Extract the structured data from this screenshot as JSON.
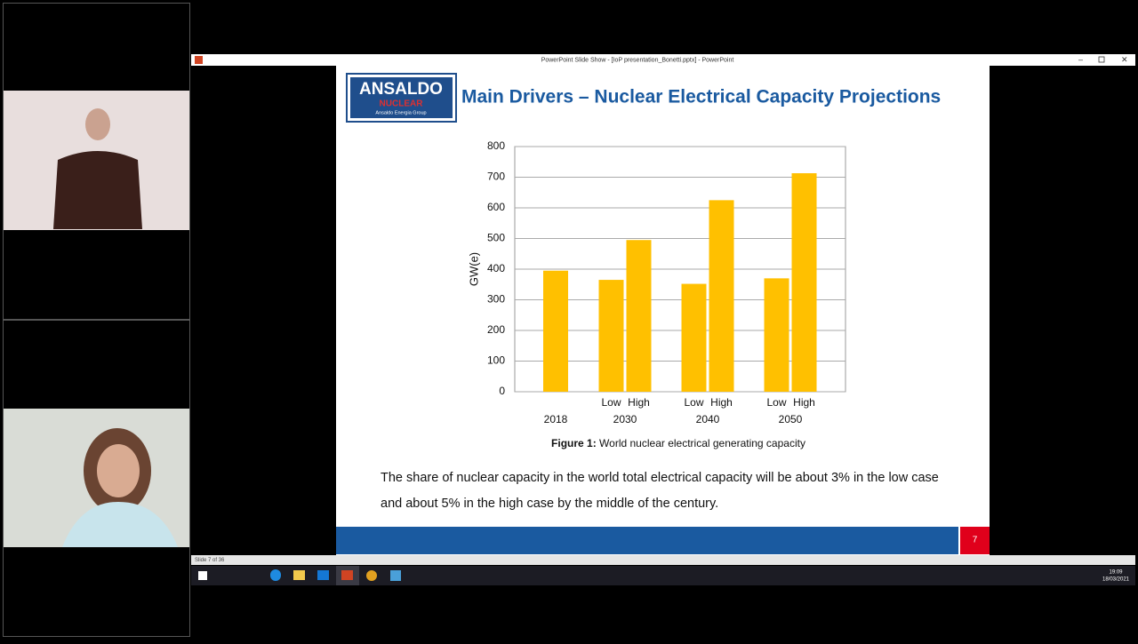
{
  "window": {
    "title": "PowerPoint Slide Show - [IoP presentation_Bonetti.pptx] - PowerPoint",
    "status": "Slide 7 of 36"
  },
  "slide": {
    "logo": {
      "name": "ANSALDO",
      "sub": "NUCLEAR",
      "group": "Ansaldo Energia Group"
    },
    "title": "Main Drivers – Nuclear Electrical Capacity Projections",
    "chart": {
      "type": "bar",
      "y_label": "GW(e)",
      "color": "#ffc000",
      "grid": true,
      "ylim": [
        0,
        800
      ],
      "yticks": [
        0,
        100,
        200,
        300,
        400,
        500,
        600,
        700,
        800
      ],
      "groups": [
        {
          "label": "2018",
          "bars": [
            {
              "value": 395
            }
          ]
        },
        {
          "label": "2030",
          "bars": [
            {
              "label": "Low",
              "value": 365
            },
            {
              "label": "High",
              "value": 495
            }
          ]
        },
        {
          "label": "2040",
          "bars": [
            {
              "label": "Low",
              "value": 352
            },
            {
              "label": "High",
              "value": 625
            }
          ]
        },
        {
          "label": "2050",
          "bars": [
            {
              "label": "Low",
              "value": 370
            },
            {
              "label": "High",
              "value": 713
            }
          ]
        }
      ]
    },
    "caption_label": "Figure 1:",
    "caption_text": "World nuclear electrical generating capacity",
    "body": [
      "The share of nuclear capacity in the world total electrical capacity will be about 3% in the low case",
      "and about 5% in the high case by the middle of the century."
    ],
    "number": "7"
  },
  "taskbar": {
    "time": "19:09",
    "date": "18/03/2021"
  }
}
